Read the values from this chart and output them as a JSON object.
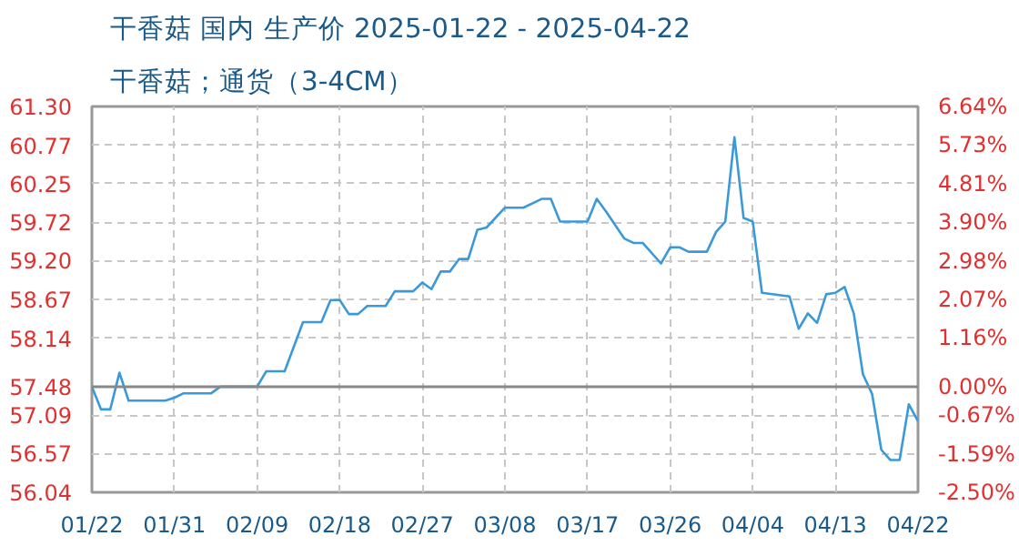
{
  "chart_data": {
    "type": "line",
    "title": "干香菇 国内 生产价 2025-01-22 - 2025-04-22",
    "subtitle": "干香菇；通货（3-4CM）",
    "x": [
      "2025-01-22",
      "2025-01-23",
      "2025-01-24",
      "2025-01-25",
      "2025-01-26",
      "2025-01-30",
      "2025-01-31",
      "2025-02-01",
      "2025-02-04",
      "2025-02-05",
      "2025-02-09",
      "2025-02-10",
      "2025-02-12",
      "2025-02-14",
      "2025-02-16",
      "2025-02-17",
      "2025-02-18",
      "2025-02-19",
      "2025-02-20",
      "2025-02-21",
      "2025-02-23",
      "2025-02-24",
      "2025-02-26",
      "2025-02-27",
      "2025-02-28",
      "2025-03-01",
      "2025-03-02",
      "2025-03-03",
      "2025-03-04",
      "2025-03-05",
      "2025-03-06",
      "2025-03-08",
      "2025-03-10",
      "2025-03-12",
      "2025-03-13",
      "2025-03-14",
      "2025-03-17",
      "2025-03-18",
      "2025-03-19",
      "2025-03-21",
      "2025-03-22",
      "2025-03-23",
      "2025-03-25",
      "2025-03-26",
      "2025-03-27",
      "2025-03-28",
      "2025-03-30",
      "2025-03-31",
      "2025-04-01",
      "2025-04-02",
      "2025-04-03",
      "2025-04-04",
      "2025-04-05",
      "2025-04-08",
      "2025-04-09",
      "2025-04-10",
      "2025-04-11",
      "2025-04-12",
      "2025-04-13",
      "2025-04-14",
      "2025-04-15",
      "2025-04-16",
      "2025-04-17",
      "2025-04-18",
      "2025-04-19",
      "2025-04-20",
      "2025-04-21",
      "2025-04-22"
    ],
    "series": [
      {
        "color": "#3a9ad9",
        "values": [
          57.48,
          57.17,
          57.17,
          57.67,
          57.29,
          57.29,
          57.33,
          57.39,
          57.39,
          57.48,
          57.48,
          57.69,
          57.69,
          58.36,
          58.36,
          58.66,
          58.66,
          58.47,
          58.47,
          58.58,
          58.58,
          58.78,
          58.78,
          58.9,
          58.81,
          59.05,
          59.05,
          59.22,
          59.22,
          59.62,
          59.65,
          59.92,
          59.92,
          60.04,
          60.04,
          59.73,
          59.73,
          60.04,
          59.87,
          59.5,
          59.44,
          59.44,
          59.16,
          59.38,
          59.38,
          59.32,
          59.32,
          59.59,
          59.73,
          60.88,
          59.78,
          59.73,
          58.76,
          58.71,
          58.27,
          58.48,
          58.35,
          58.74,
          58.76,
          58.84,
          58.48,
          57.65,
          57.38,
          56.62,
          56.48,
          56.48,
          57.24,
          57.01
        ]
      }
    ],
    "xlim": [
      "2025-01-22",
      "2025-04-22"
    ],
    "xticks": [
      {
        "value": "2025-01-22",
        "label": "01/22"
      },
      {
        "value": "2025-01-31",
        "label": "01/31"
      },
      {
        "value": "2025-02-09",
        "label": "02/09"
      },
      {
        "value": "2025-02-18",
        "label": "02/18"
      },
      {
        "value": "2025-02-27",
        "label": "02/27"
      },
      {
        "value": "2025-03-08",
        "label": "03/08"
      },
      {
        "value": "2025-03-17",
        "label": "03/17"
      },
      {
        "value": "2025-03-26",
        "label": "03/26"
      },
      {
        "value": "2025-04-04",
        "label": "04/04"
      },
      {
        "value": "2025-04-13",
        "label": "04/13"
      },
      {
        "value": "2025-04-22",
        "label": "04/22"
      }
    ],
    "ylim": [
      56.04,
      61.3
    ],
    "yticks": [
      {
        "value": 56.04,
        "label": "56.04"
      },
      {
        "value": 56.57,
        "label": "56.57"
      },
      {
        "value": 57.09,
        "label": "57.09"
      },
      {
        "value": 57.48,
        "label": "57.48"
      },
      {
        "value": 58.14,
        "label": "58.14"
      },
      {
        "value": 58.67,
        "label": "58.67"
      },
      {
        "value": 59.2,
        "label": "59.20"
      },
      {
        "value": 59.72,
        "label": "59.72"
      },
      {
        "value": 60.25,
        "label": "60.25"
      },
      {
        "value": 60.77,
        "label": "60.77"
      },
      {
        "value": 61.3,
        "label": "61.30"
      }
    ],
    "y2lim": [
      -2.5,
      6.64
    ],
    "y2ticks": [
      {
        "value": -2.5,
        "label": "-2.50%"
      },
      {
        "value": -1.59,
        "label": "-1.59%"
      },
      {
        "value": -0.67,
        "label": "-0.67%"
      },
      {
        "value": 0,
        "label": "0.00%"
      },
      {
        "value": 1.16,
        "label": "1.16%"
      },
      {
        "value": 2.07,
        "label": "2.07%"
      },
      {
        "value": 2.98,
        "label": "2.98%"
      },
      {
        "value": 3.9,
        "label": "3.90%"
      },
      {
        "value": 4.81,
        "label": "4.81%"
      },
      {
        "value": 5.73,
        "label": "5.73%"
      },
      {
        "value": 6.64,
        "label": "6.64%"
      }
    ],
    "ref_lines": [
      {
        "axis": "y",
        "value": 57.48,
        "color": "#888888"
      }
    ],
    "grid": true,
    "line_style": "solid",
    "marker": "none"
  }
}
